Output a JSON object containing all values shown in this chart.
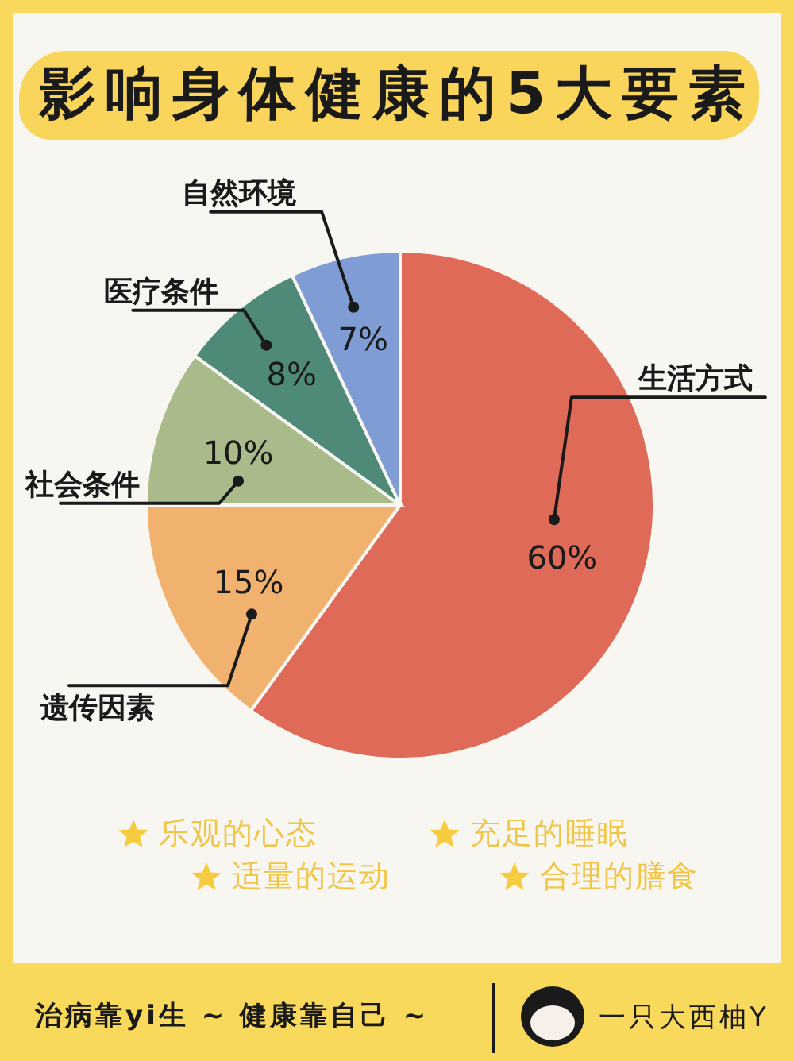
{
  "chart_data": {
    "type": "pie",
    "title": "影响身体健康的5大要素",
    "categories": [
      "生活方式",
      "遗传因素",
      "社会条件",
      "医疗条件",
      "自然环境"
    ],
    "values": [
      60,
      15,
      10,
      8,
      7
    ],
    "value_labels": [
      "60%",
      "15%",
      "10%",
      "8%",
      "7%"
    ],
    "colors": [
      "#df6a58",
      "#f2b26f",
      "#a9bb8a",
      "#4f8a78",
      "#7f9dd4"
    ],
    "annotations": [
      "乐观的心态",
      "充足的睡眠",
      "适量的运动",
      "合理的膳食",
      "治病靠yi生 ~ 健康靠自己 ~",
      "一只大西柚Y"
    ]
  }
}
